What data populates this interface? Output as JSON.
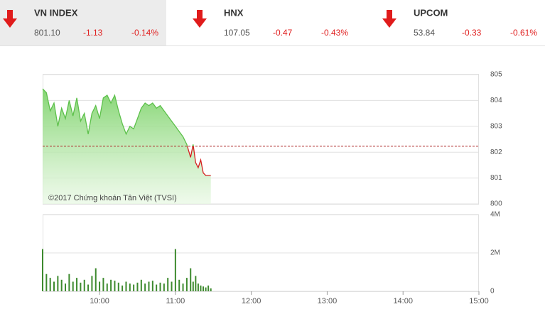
{
  "tickers": [
    {
      "name": "VN INDEX",
      "value": "801.10",
      "change": "-1.13",
      "percent": "-0.14%"
    },
    {
      "name": "HNX",
      "value": "107.05",
      "change": "-0.47",
      "percent": "-0.43%"
    },
    {
      "name": "UPCOM",
      "value": "53.84",
      "change": "-0.33",
      "percent": "-0.61%"
    }
  ],
  "chart_data": [
    {
      "type": "line",
      "annotation": "©2017 Chứng khoán Tân Việt (TVSI)",
      "x": [
        "09:15",
        "09:18",
        "09:21",
        "09:24",
        "09:27",
        "09:30",
        "09:33",
        "09:36",
        "09:39",
        "09:42",
        "09:45",
        "09:48",
        "09:51",
        "09:54",
        "09:57",
        "10:00",
        "10:03",
        "10:06",
        "10:09",
        "10:12",
        "10:15",
        "10:18",
        "10:21",
        "10:24",
        "10:27",
        "10:30",
        "10:33",
        "10:36",
        "10:39",
        "10:42",
        "10:45",
        "10:48",
        "10:51",
        "10:54",
        "10:57",
        "11:00",
        "11:03",
        "11:06",
        "11:09",
        "11:12",
        "11:14",
        "11:16",
        "11:18",
        "11:20",
        "11:22",
        "11:24",
        "11:26",
        "11:28"
      ],
      "values": [
        804.45,
        804.3,
        803.6,
        803.9,
        803.0,
        803.7,
        803.3,
        804.0,
        803.4,
        804.1,
        803.2,
        803.5,
        802.7,
        803.5,
        803.8,
        803.3,
        804.1,
        804.2,
        803.9,
        804.2,
        803.6,
        803.1,
        802.7,
        803.0,
        802.9,
        803.3,
        803.7,
        803.9,
        803.8,
        803.9,
        803.7,
        803.8,
        803.6,
        803.4,
        803.2,
        803.0,
        802.8,
        802.6,
        802.3,
        801.8,
        802.3,
        801.6,
        801.4,
        801.7,
        801.2,
        801.1,
        801.1,
        801.1
      ],
      "reference": 802.23,
      "color_up": "#5cc04a",
      "color_down": "#d42020",
      "xlim": [
        "09:15",
        "15:00"
      ],
      "ylim": [
        800,
        805
      ],
      "yticks": [
        800,
        801,
        802,
        803,
        804,
        805
      ],
      "grid": true
    },
    {
      "type": "bar",
      "color": "#3d8a2e",
      "x": [
        "09:15",
        "09:18",
        "09:21",
        "09:24",
        "09:27",
        "09:30",
        "09:33",
        "09:36",
        "09:39",
        "09:42",
        "09:45",
        "09:48",
        "09:51",
        "09:54",
        "09:57",
        "10:00",
        "10:03",
        "10:06",
        "10:09",
        "10:12",
        "10:15",
        "10:18",
        "10:21",
        "10:24",
        "10:27",
        "10:30",
        "10:33",
        "10:36",
        "10:39",
        "10:42",
        "10:45",
        "10:48",
        "10:51",
        "10:54",
        "10:57",
        "11:00",
        "11:03",
        "11:06",
        "11:09",
        "11:12",
        "11:14",
        "11:16",
        "11:18",
        "11:20",
        "11:22",
        "11:24",
        "11:26",
        "11:28"
      ],
      "values": [
        2200000,
        900000,
        700000,
        500000,
        800000,
        600000,
        400000,
        900000,
        500000,
        700000,
        450000,
        600000,
        350000,
        800000,
        1200000,
        500000,
        700000,
        400000,
        600000,
        550000,
        450000,
        300000,
        500000,
        400000,
        350000,
        450000,
        600000,
        400000,
        500000,
        550000,
        350000,
        450000,
        400000,
        700000,
        500000,
        2200000,
        600000,
        400000,
        700000,
        1200000,
        500000,
        800000,
        400000,
        300000,
        250000,
        200000,
        300000,
        150000
      ],
      "xlim": [
        "09:15",
        "15:00"
      ],
      "xticks": [
        "10:00",
        "11:00",
        "12:00",
        "13:00",
        "14:00",
        "15:00"
      ],
      "ylim": [
        0,
        4000000
      ],
      "yticks": [
        0,
        {
          "value": 2000000,
          "label": "2M"
        },
        {
          "value": 4000000,
          "label": "4M"
        }
      ],
      "grid": true
    }
  ]
}
